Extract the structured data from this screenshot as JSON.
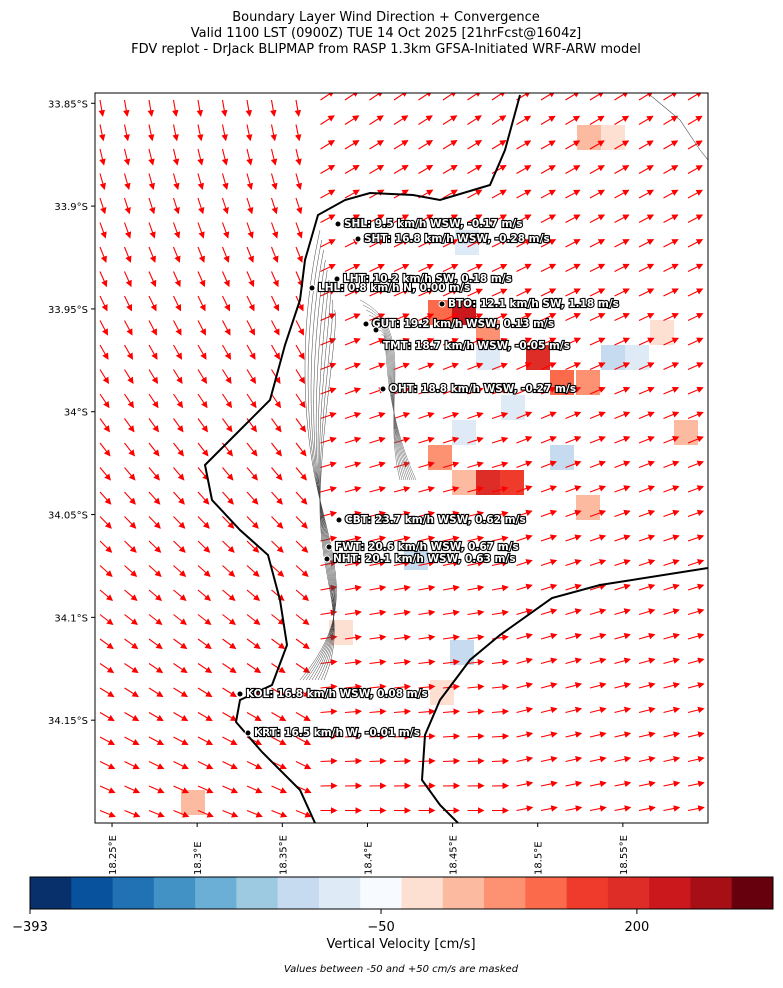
{
  "title": [
    "Boundary Layer Wind Direction + Convergence",
    "Valid 1100 LST (0900Z) TUE 14 Oct 2025 [21hrFcst@1604z]",
    "FDV replot - DrJack BLIPMAP from RASP 1.3km GFSA-Initiated WRF-ARW model"
  ],
  "map": {
    "xlim": [
      18.24,
      18.6
    ],
    "ylim": [
      -34.2,
      -33.845
    ],
    "lat_ticks": [
      {
        "value": -33.85,
        "label": "33.85°S"
      },
      {
        "value": -33.9,
        "label": "33.9°S"
      },
      {
        "value": -33.95,
        "label": "33.95°S"
      },
      {
        "value": -34.0,
        "label": "34°S"
      },
      {
        "value": -34.05,
        "label": "34.05°S"
      },
      {
        "value": -34.1,
        "label": "34.1°S"
      },
      {
        "value": -34.15,
        "label": "34.15°S"
      }
    ],
    "lon_ticks": [
      {
        "value": 18.25,
        "label": "18.25°E"
      },
      {
        "value": 18.3,
        "label": "18.3°E"
      },
      {
        "value": 18.35,
        "label": "18.35°E"
      },
      {
        "value": 18.4,
        "label": "18.4°E"
      },
      {
        "value": 18.45,
        "label": "18.45°E"
      },
      {
        "value": 18.5,
        "label": "18.5°E"
      },
      {
        "value": 18.55,
        "label": "18.55°E"
      }
    ]
  },
  "stations": [
    "SHL: 9.5 km/h WSW, -0.17 m/s",
    "SHT: 16.8 km/h WSW, -0.28 m/s",
    "LHT: 10.2 km/h SW, 0.18 m/s",
    "LHL: 0.8 km/h N, 0.00 m/s",
    "BTO: 12.1 km/h SW, 1.18 m/s",
    "GUT: 19.2 km/h WSW, 0.13 m/s",
    "TMT: 18.7 km/h WSW, -0.05 m/s",
    "OHT: 18.8 km/h WSW, -0.27 m/s",
    "CBT: 23.7 km/h WSW, 0.62 m/s",
    "FWT: 20.6 km/h WSW, 0.67 m/s",
    "NHT: 20.1 km/h WSW, 0.63 m/s",
    "KOL: 16.8 km/h WSW, 0.08 m/s",
    "KRT: 16.5 km/h W, -0.01 m/s"
  ],
  "colorbar": {
    "label": "Vertical Velocity [cm/s]",
    "range": [
      -393,
      333
    ],
    "ticks": [
      {
        "value": -393,
        "label": "−393"
      },
      {
        "value": -50,
        "label": "−50"
      },
      {
        "value": 200,
        "label": "200"
      }
    ],
    "colors": [
      "#08306b",
      "#08519c",
      "#2171b5",
      "#4292c6",
      "#6baed6",
      "#9ecae1",
      "#c6dbef",
      "#deebf7",
      "#f7fbff",
      "#fee0d2",
      "#fcbba1",
      "#fc9272",
      "#fb6a4a",
      "#ef3b2c",
      "#de2d26",
      "#cb181d",
      "#a50f15",
      "#67000d"
    ],
    "note": "Values between -50 and +50 cm/s are masked"
  }
}
